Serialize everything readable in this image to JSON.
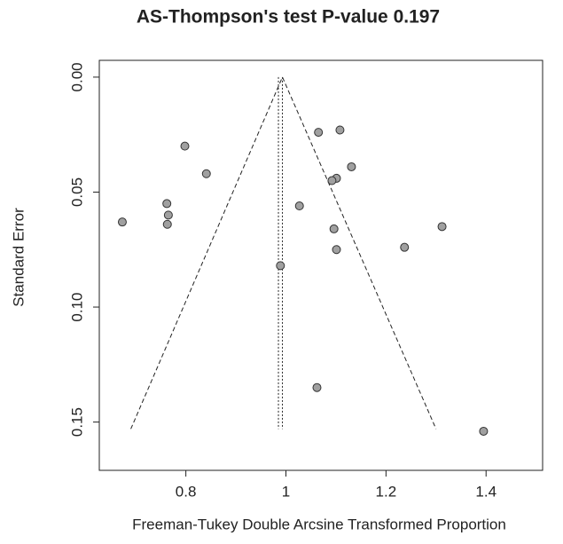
{
  "chart_data": {
    "type": "scatter",
    "title": "AS-Thompson's test P-value 0.197",
    "x_label": "Freeman-Tukey Double Arcsine Transformed Proportion",
    "y_label": "Standard Error",
    "x": [
      0.673,
      0.762,
      0.765,
      0.763,
      0.798,
      0.841,
      0.989,
      1.027,
      1.065,
      1.108,
      1.131,
      1.101,
      1.092,
      1.096,
      1.101,
      1.237,
      1.312,
      1.062,
      1.395
    ],
    "values": [
      0.063,
      0.055,
      0.06,
      0.064,
      0.03,
      0.042,
      0.082,
      0.056,
      0.024,
      0.023,
      0.039,
      0.044,
      0.045,
      0.066,
      0.075,
      0.074,
      0.065,
      0.135,
      0.154
    ],
    "color": "#a0a0a0",
    "funnel": {
      "x": [
        0.69,
        0.993,
        1.3
      ],
      "y": [
        0.153,
        0,
        0.153
      ]
    },
    "reference_lines": [
      0.985,
      0.993
    ],
    "xlim": [
      0.627,
      1.513
    ],
    "ylim": [
      0.171,
      -0.0073
    ],
    "xticks": [
      0.8,
      1.0,
      1.2,
      1.4
    ],
    "yticks": [
      {
        "value": 0,
        "label": "0.00"
      },
      0.05,
      {
        "value": 0.1,
        "label": "0.10"
      },
      0.15
    ],
    "y_reversed": true,
    "grid": false
  }
}
